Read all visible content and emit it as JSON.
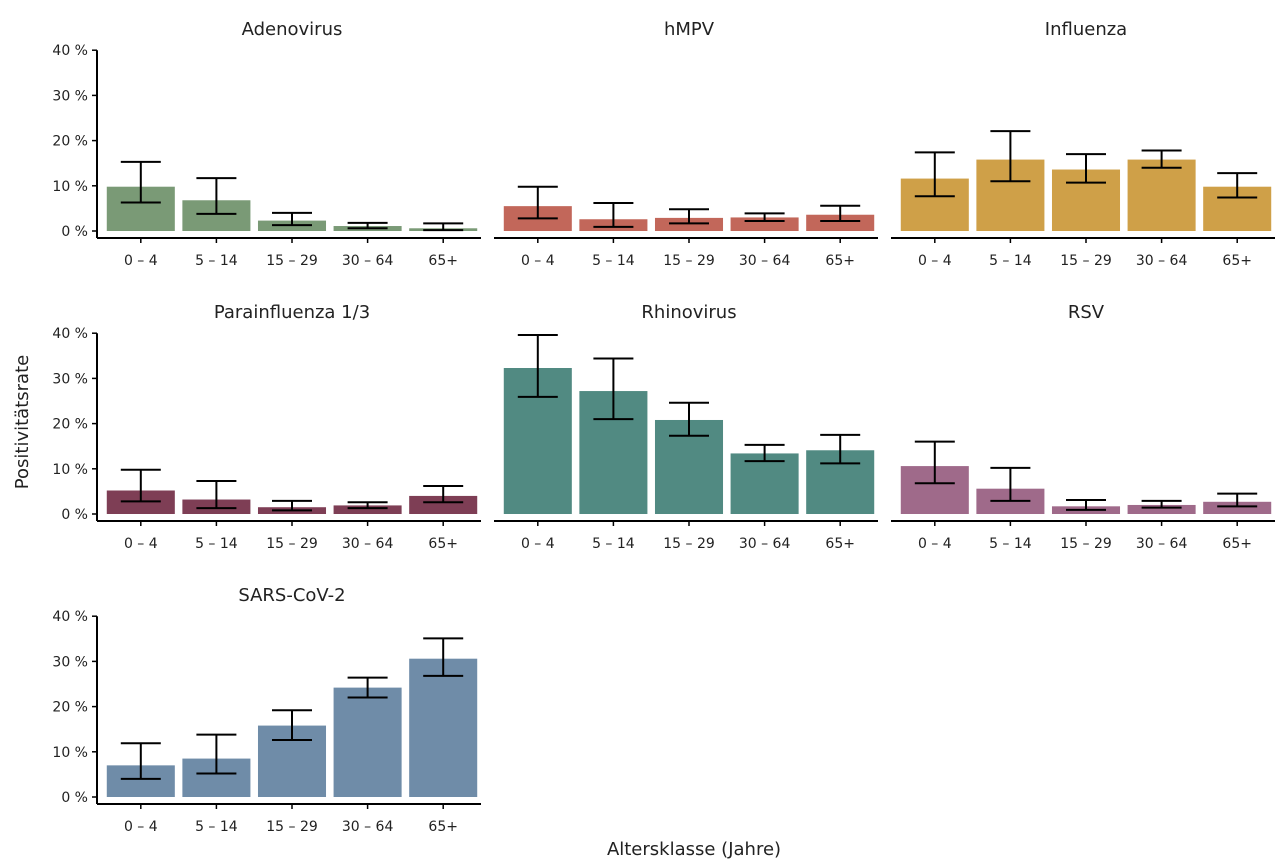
{
  "chart_data": {
    "type": "bar",
    "xlabel": "Altersklasse (Jahre)",
    "ylabel": "Positivitätsrate",
    "ylim": [
      0,
      40
    ],
    "yticks": [
      "0 %",
      "10 %",
      "20 %",
      "30 %",
      "40 %"
    ],
    "categories": [
      "0 – 4",
      "5 – 14",
      "15 – 29",
      "30 – 64",
      "65+"
    ],
    "panels": [
      {
        "title": "Adenovirus",
        "color": "#7a9a76",
        "values": [
          9.8,
          6.8,
          2.3,
          1.1,
          0.6
        ],
        "ci_low": [
          6.3,
          3.8,
          1.3,
          0.6,
          0.2
        ],
        "ci_high": [
          15.3,
          11.7,
          4.0,
          1.8,
          1.7
        ]
      },
      {
        "title": "hMPV",
        "color": "#c2675a",
        "values": [
          5.5,
          2.6,
          2.9,
          3.0,
          3.6
        ],
        "ci_low": [
          2.8,
          0.9,
          1.7,
          2.2,
          2.2
        ],
        "ci_high": [
          9.8,
          6.2,
          4.8,
          3.9,
          5.6
        ]
      },
      {
        "title": "Influenza",
        "color": "#cfa048",
        "values": [
          11.6,
          15.8,
          13.6,
          15.8,
          9.8
        ],
        "ci_low": [
          7.7,
          11.0,
          10.7,
          14.0,
          7.4
        ],
        "ci_high": [
          17.4,
          22.1,
          17.0,
          17.8,
          12.8
        ]
      },
      {
        "title": "Parainfluenza 1/3",
        "color": "#7e3e55",
        "values": [
          5.2,
          3.2,
          1.5,
          1.9,
          4.0
        ],
        "ci_low": [
          2.8,
          1.3,
          0.8,
          1.3,
          2.6
        ],
        "ci_high": [
          9.8,
          7.3,
          2.9,
          2.6,
          6.2
        ]
      },
      {
        "title": "Rhinovirus",
        "color": "#518a82",
        "values": [
          32.3,
          27.2,
          20.8,
          13.4,
          14.1
        ],
        "ci_low": [
          25.9,
          21.0,
          17.3,
          11.7,
          11.2
        ],
        "ci_high": [
          39.6,
          34.4,
          24.6,
          15.3,
          17.5
        ]
      },
      {
        "title": "RSV",
        "color": "#9f6a8a",
        "values": [
          10.6,
          5.6,
          1.7,
          2.0,
          2.7
        ],
        "ci_low": [
          6.8,
          2.9,
          0.9,
          1.4,
          1.7
        ],
        "ci_high": [
          16.0,
          10.2,
          3.1,
          2.9,
          4.5
        ]
      },
      {
        "title": "SARS-CoV-2",
        "color": "#6f8ca8",
        "values": [
          7.0,
          8.5,
          15.8,
          24.2,
          30.6
        ],
        "ci_low": [
          4.0,
          5.2,
          12.6,
          22.0,
          26.8
        ],
        "ci_high": [
          11.9,
          13.8,
          19.2,
          26.4,
          35.1
        ]
      }
    ]
  }
}
